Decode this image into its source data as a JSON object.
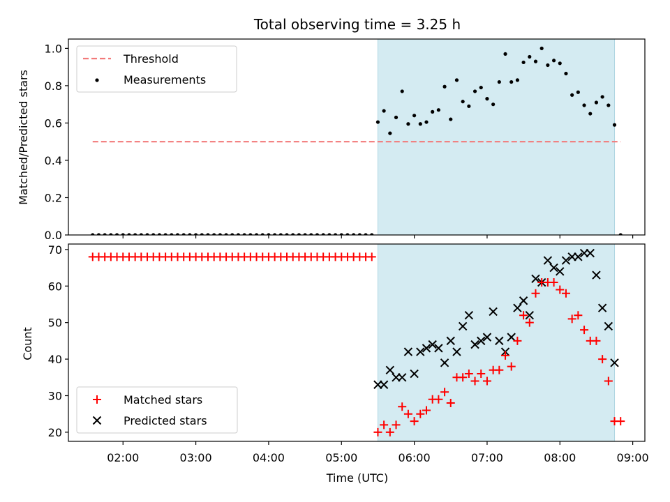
{
  "chart_data": {
    "title": "Total observing time = 3.25 h",
    "xlabel": "Time (UTC)",
    "x_ticks": [
      "02:00",
      "03:00",
      "04:00",
      "05:00",
      "06:00",
      "07:00",
      "08:00",
      "09:00"
    ],
    "x_range": [
      "01:15",
      "09:10"
    ],
    "shaded_interval": [
      "05:30",
      "08:45"
    ],
    "colors": {
      "shade": "#d4ebf2",
      "shade_edge": "#aed6e2",
      "threshold": "#f27a7a",
      "matched": "#ff0000",
      "predicted": "#000000",
      "measurement": "#000000"
    },
    "top": {
      "type": "scatter",
      "ylabel": "Matched/Predicted stars",
      "ylim": [
        0,
        1.05
      ],
      "y_ticks": [
        "0.0",
        "0.2",
        "0.4",
        "0.6",
        "0.8",
        "1.0"
      ],
      "legend": {
        "placement": "top-left",
        "threshold_label": "Threshold",
        "measurements_label": "Measurements"
      },
      "threshold": {
        "value": 0.5,
        "x_start": "01:35",
        "x_end": "08:50"
      },
      "measurements": [
        [
          "01:35",
          0
        ],
        [
          "01:40",
          0
        ],
        [
          "01:45",
          0
        ],
        [
          "01:50",
          0
        ],
        [
          "01:55",
          0
        ],
        [
          "02:00",
          0
        ],
        [
          "02:05",
          0
        ],
        [
          "02:10",
          0
        ],
        [
          "02:15",
          0
        ],
        [
          "02:20",
          0
        ],
        [
          "02:25",
          0
        ],
        [
          "02:30",
          0
        ],
        [
          "02:35",
          0
        ],
        [
          "02:40",
          0
        ],
        [
          "02:45",
          0
        ],
        [
          "02:50",
          0
        ],
        [
          "02:55",
          0
        ],
        [
          "03:00",
          0
        ],
        [
          "03:05",
          0
        ],
        [
          "03:10",
          0
        ],
        [
          "03:15",
          0
        ],
        [
          "03:20",
          0
        ],
        [
          "03:25",
          0
        ],
        [
          "03:30",
          0
        ],
        [
          "03:35",
          0
        ],
        [
          "03:40",
          0
        ],
        [
          "03:45",
          0
        ],
        [
          "03:50",
          0
        ],
        [
          "03:55",
          0
        ],
        [
          "04:00",
          0
        ],
        [
          "04:05",
          0
        ],
        [
          "04:10",
          0
        ],
        [
          "04:15",
          0
        ],
        [
          "04:20",
          0
        ],
        [
          "04:25",
          0
        ],
        [
          "04:30",
          0
        ],
        [
          "04:35",
          0
        ],
        [
          "04:40",
          0
        ],
        [
          "04:45",
          0
        ],
        [
          "04:50",
          0
        ],
        [
          "04:55",
          0
        ],
        [
          "05:00",
          0
        ],
        [
          "05:05",
          0
        ],
        [
          "05:10",
          0
        ],
        [
          "05:15",
          0
        ],
        [
          "05:20",
          0
        ],
        [
          "05:25",
          0
        ],
        [
          "05:30",
          0.605
        ],
        [
          "05:35",
          0.665
        ],
        [
          "05:40",
          0.545
        ],
        [
          "05:45",
          0.63
        ],
        [
          "05:50",
          0.77
        ],
        [
          "05:55",
          0.595
        ],
        [
          "06:00",
          0.64
        ],
        [
          "06:05",
          0.595
        ],
        [
          "06:10",
          0.605
        ],
        [
          "06:15",
          0.66
        ],
        [
          "06:20",
          0.67
        ],
        [
          "06:25",
          0.795
        ],
        [
          "06:30",
          0.62
        ],
        [
          "06:35",
          0.83
        ],
        [
          "06:40",
          0.715
        ],
        [
          "06:45",
          0.69
        ],
        [
          "06:50",
          0.77
        ],
        [
          "06:55",
          0.79
        ],
        [
          "07:00",
          0.73
        ],
        [
          "07:05",
          0.7
        ],
        [
          "07:10",
          0.82
        ],
        [
          "07:15",
          0.97
        ],
        [
          "07:20",
          0.82
        ],
        [
          "07:25",
          0.83
        ],
        [
          "07:30",
          0.925
        ],
        [
          "07:35",
          0.955
        ],
        [
          "07:40",
          0.93
        ],
        [
          "07:45",
          1.0
        ],
        [
          "07:50",
          0.91
        ],
        [
          "07:55",
          0.935
        ],
        [
          "08:00",
          0.92
        ],
        [
          "08:05",
          0.865
        ],
        [
          "08:10",
          0.75
        ],
        [
          "08:15",
          0.765
        ],
        [
          "08:20",
          0.695
        ],
        [
          "08:25",
          0.65
        ],
        [
          "08:30",
          0.71
        ],
        [
          "08:35",
          0.74
        ],
        [
          "08:40",
          0.695
        ],
        [
          "08:45",
          0.59
        ],
        [
          "08:50",
          0
        ]
      ]
    },
    "bottom": {
      "type": "scatter",
      "ylabel": "Count",
      "ylim": [
        17.5,
        71.5
      ],
      "y_ticks": [
        "20",
        "30",
        "40",
        "50",
        "60",
        "70"
      ],
      "legend": {
        "placement": "bottom-left",
        "matched_label": "Matched stars",
        "predicted_label": "Predicted stars"
      },
      "matched_flat": {
        "value": 68,
        "x_start": "01:35",
        "x_end": "05:25",
        "step_minutes": 5
      },
      "matched": [
        [
          "05:30",
          20
        ],
        [
          "05:35",
          22
        ],
        [
          "05:40",
          20
        ],
        [
          "05:45",
          22
        ],
        [
          "05:50",
          27
        ],
        [
          "05:55",
          25
        ],
        [
          "06:00",
          23
        ],
        [
          "06:05",
          25
        ],
        [
          "06:10",
          26
        ],
        [
          "06:15",
          29
        ],
        [
          "06:20",
          29
        ],
        [
          "06:25",
          31
        ],
        [
          "06:30",
          28
        ],
        [
          "06:35",
          35
        ],
        [
          "06:40",
          35
        ],
        [
          "06:45",
          36
        ],
        [
          "06:50",
          34
        ],
        [
          "06:55",
          36
        ],
        [
          "07:00",
          34
        ],
        [
          "07:05",
          37
        ],
        [
          "07:10",
          37
        ],
        [
          "07:15",
          41
        ],
        [
          "07:20",
          38
        ],
        [
          "07:25",
          45
        ],
        [
          "07:30",
          52
        ],
        [
          "07:35",
          50
        ],
        [
          "07:40",
          58
        ],
        [
          "07:45",
          61
        ],
        [
          "07:50",
          61
        ],
        [
          "07:55",
          61
        ],
        [
          "08:00",
          59
        ],
        [
          "08:05",
          58
        ],
        [
          "08:10",
          51
        ],
        [
          "08:15",
          52
        ],
        [
          "08:20",
          48
        ],
        [
          "08:25",
          45
        ],
        [
          "08:30",
          45
        ],
        [
          "08:35",
          40
        ],
        [
          "08:40",
          34
        ],
        [
          "08:45",
          23
        ],
        [
          "08:50",
          23
        ]
      ],
      "predicted": [
        [
          "05:30",
          33
        ],
        [
          "05:35",
          33
        ],
        [
          "05:40",
          37
        ],
        [
          "05:45",
          35
        ],
        [
          "05:50",
          35
        ],
        [
          "05:55",
          42
        ],
        [
          "06:00",
          36
        ],
        [
          "06:05",
          42
        ],
        [
          "06:10",
          43
        ],
        [
          "06:15",
          44
        ],
        [
          "06:20",
          43
        ],
        [
          "06:25",
          39
        ],
        [
          "06:30",
          45
        ],
        [
          "06:35",
          42
        ],
        [
          "06:40",
          49
        ],
        [
          "06:45",
          52
        ],
        [
          "06:50",
          44
        ],
        [
          "06:55",
          45
        ],
        [
          "07:00",
          46
        ],
        [
          "07:05",
          53
        ],
        [
          "07:10",
          45
        ],
        [
          "07:15",
          42
        ],
        [
          "07:20",
          46
        ],
        [
          "07:25",
          54
        ],
        [
          "07:30",
          56
        ],
        [
          "07:35",
          52
        ],
        [
          "07:40",
          62
        ],
        [
          "07:45",
          61
        ],
        [
          "07:50",
          67
        ],
        [
          "07:55",
          65
        ],
        [
          "08:00",
          64
        ],
        [
          "08:05",
          67
        ],
        [
          "08:10",
          68
        ],
        [
          "08:15",
          68
        ],
        [
          "08:20",
          69
        ],
        [
          "08:25",
          69
        ],
        [
          "08:30",
          63
        ],
        [
          "08:35",
          54
        ],
        [
          "08:40",
          49
        ],
        [
          "08:45",
          39
        ]
      ]
    }
  }
}
